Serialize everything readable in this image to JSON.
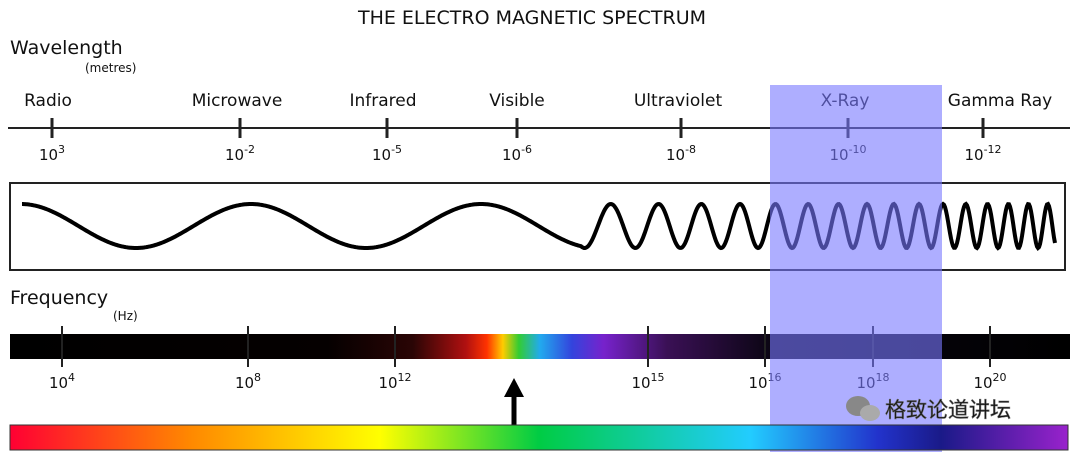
{
  "title": "THE ELECTRO MAGNETIC SPECTRUM",
  "wavelength": {
    "label": "Wavelength",
    "unit": "(metres)",
    "bands": [
      "Radio",
      "Microwave",
      "Infrared",
      "Visible",
      "Ultraviolet",
      "X-Ray",
      "Gamma Ray"
    ],
    "ticks": [
      {
        "base": "10",
        "exponent": "3"
      },
      {
        "base": "10",
        "exponent": "-2"
      },
      {
        "base": "10",
        "exponent": "-5"
      },
      {
        "base": "10",
        "exponent": "-6"
      },
      {
        "base": "10",
        "exponent": "-8"
      },
      {
        "base": "10",
        "exponent": "-10"
      },
      {
        "base": "10",
        "exponent": "-12"
      }
    ]
  },
  "frequency": {
    "label": "Frequency",
    "unit": "(Hz)",
    "ticks": [
      {
        "base": "10",
        "exponent": "4"
      },
      {
        "base": "10",
        "exponent": "8"
      },
      {
        "base": "10",
        "exponent": "12"
      },
      {
        "base": "10",
        "exponent": "15"
      },
      {
        "base": "10",
        "exponent": "16"
      },
      {
        "base": "10",
        "exponent": "18"
      },
      {
        "base": "10",
        "exponent": "20"
      }
    ]
  },
  "watermark": "格致论道讲坛"
}
